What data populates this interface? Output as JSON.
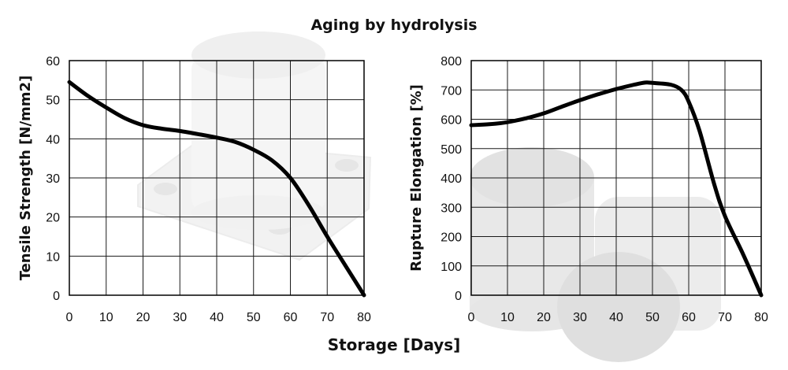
{
  "title": "Aging by hydrolysis",
  "xlabel": "Storage [Days]",
  "chart_data": [
    {
      "type": "line",
      "ylabel": "Tensile Strength [N/mm2]",
      "xlim": [
        0,
        80
      ],
      "ylim": [
        0,
        60
      ],
      "xticks": [
        0,
        10,
        20,
        30,
        40,
        50,
        60,
        70,
        80
      ],
      "yticks": [
        0,
        10,
        20,
        30,
        40,
        50,
        60
      ],
      "grid": true,
      "series": [
        {
          "x": [
            0,
            5,
            10,
            15,
            20,
            25,
            30,
            35,
            40,
            45,
            50,
            55,
            60,
            65,
            70,
            75,
            80
          ],
          "values": [
            54.5,
            51,
            48,
            45.3,
            43.5,
            42.6,
            42,
            41.2,
            40.3,
            39.2,
            37.2,
            34.5,
            30,
            23,
            15,
            7.5,
            0
          ]
        }
      ]
    },
    {
      "type": "line",
      "ylabel": "Rupture Elongation [%]",
      "xlim": [
        0,
        80
      ],
      "ylim": [
        0,
        800
      ],
      "xticks": [
        0,
        10,
        20,
        30,
        40,
        50,
        60,
        70,
        80
      ],
      "yticks": [
        0,
        100,
        200,
        300,
        400,
        500,
        600,
        700,
        800
      ],
      "grid": true,
      "series": [
        {
          "x": [
            0,
            5,
            10,
            15,
            20,
            25,
            30,
            35,
            40,
            45,
            48,
            50,
            55,
            58,
            60,
            63,
            67,
            70,
            75,
            80
          ],
          "values": [
            580,
            583,
            590,
            603,
            620,
            643,
            665,
            685,
            703,
            718,
            725,
            724,
            718,
            700,
            660,
            560,
            380,
            270,
            140,
            0
          ]
        }
      ]
    }
  ]
}
